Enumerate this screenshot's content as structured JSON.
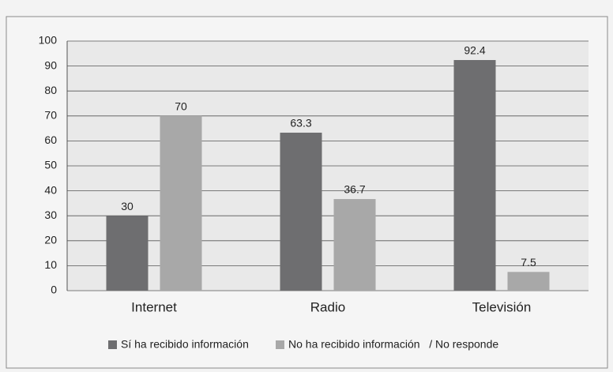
{
  "chart_data": {
    "type": "bar",
    "categories": [
      "Internet",
      "Radio",
      "Televisión"
    ],
    "series": [
      {
        "name": "Sí ha recibido información",
        "color": "#6e6e70",
        "values": [
          30,
          63.3,
          92.4
        ]
      },
      {
        "name": "No ha recibido información   / No responde",
        "color": "#a8a8a8",
        "values": [
          70,
          36.7,
          7.5
        ]
      }
    ],
    "ylim": [
      0,
      100
    ],
    "yticks": [
      0,
      10,
      20,
      30,
      40,
      50,
      60,
      70,
      80,
      90,
      100
    ],
    "grid": true,
    "legend": "bottom"
  }
}
